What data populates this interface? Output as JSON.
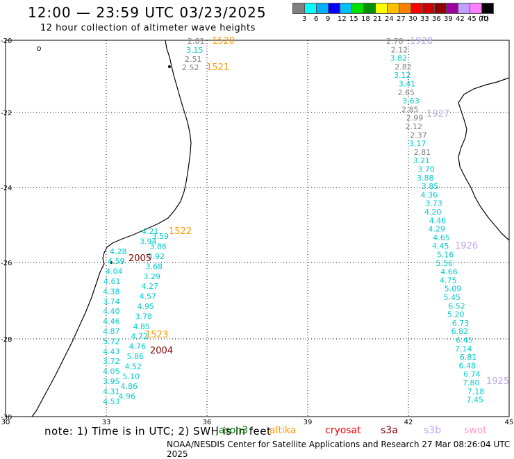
{
  "header": {
    "title": "12:00 — 23:59 UTC 03/23/2025",
    "subtitle": "12 hour collection of altimeter wave heights"
  },
  "legend": {
    "colors": [
      "#808080",
      "#00ffff",
      "#00b0ff",
      "#0000ff",
      "#00c0ff",
      "#00e000",
      "#009000",
      "#ffff00",
      "#ffc000",
      "#ff8000",
      "#ff0000",
      "#d00000",
      "#900000",
      "#a000a0",
      "#c0a0ff",
      "#ff80ff",
      "#000000"
    ],
    "labels": [
      "3",
      "6",
      "9",
      "12",
      "15",
      "18",
      "21",
      "24",
      "27",
      "30",
      "33",
      "36",
      "39",
      "42",
      "45",
      "70",
      "(ft)"
    ]
  },
  "axes": {
    "lon_ticks": [
      "30",
      "33",
      "36",
      "39",
      "42",
      "45"
    ],
    "lat_ticks": [
      "-20",
      "-22",
      "-24",
      "-26",
      "-28",
      "-30"
    ]
  },
  "passes": [
    {
      "label": "1520",
      "color": "#ff9900"
    },
    {
      "label": "1521",
      "color": "#ff9900"
    },
    {
      "label": "1522",
      "color": "#ff9900"
    },
    {
      "label": "1523",
      "color": "#ff9900"
    },
    {
      "label": "2005",
      "color": "#800000"
    },
    {
      "label": "2004",
      "color": "#800000"
    },
    {
      "label": "1928",
      "color": "#b8a8f0"
    },
    {
      "label": "1927",
      "color": "#b8a8f0"
    },
    {
      "label": "1926",
      "color": "#b8a8f0"
    },
    {
      "label": "1925",
      "color": "#b8a8f0"
    }
  ],
  "values": {
    "top_left": [
      {
        "v": "2.81",
        "c": "#808080"
      },
      {
        "v": "3.15",
        "c": "#00cccc"
      },
      {
        "v": "2.51",
        "c": "#808080"
      },
      {
        "v": "2.52",
        "c": "#808080"
      }
    ],
    "left_track": [
      {
        "v": "4.21",
        "c": "#00cccc"
      },
      {
        "v": "3.59",
        "c": "#00cccc"
      },
      {
        "v": "3.94",
        "c": "#00cccc"
      },
      {
        "v": "3.86",
        "c": "#00cccc"
      },
      {
        "v": "4.28",
        "c": "#00cccc"
      },
      {
        "v": "3.92",
        "c": "#00cccc"
      },
      {
        "v": "4.59",
        "c": "#00cccc"
      },
      {
        "v": "3.68",
        "c": "#00cccc"
      },
      {
        "v": "4.04",
        "c": "#00cccc"
      },
      {
        "v": "3.29",
        "c": "#00cccc"
      },
      {
        "v": "4.61",
        "c": "#00cccc"
      },
      {
        "v": "4.27",
        "c": "#00cccc"
      },
      {
        "v": "4.38",
        "c": "#00cccc"
      },
      {
        "v": "4.57",
        "c": "#00cccc"
      },
      {
        "v": "3.74",
        "c": "#00cccc"
      },
      {
        "v": "4.95",
        "c": "#00cccc"
      },
      {
        "v": "4.40",
        "c": "#00cccc"
      },
      {
        "v": "3.78",
        "c": "#00cccc"
      },
      {
        "v": "4.46",
        "c": "#00cccc"
      },
      {
        "v": "4.85",
        "c": "#00cccc"
      },
      {
        "v": "4.87",
        "c": "#00cccc"
      },
      {
        "v": "4.72",
        "c": "#00cccc"
      },
      {
        "v": "5.72",
        "c": "#00cccc"
      },
      {
        "v": "4.76",
        "c": "#00cccc"
      },
      {
        "v": "4.43",
        "c": "#00cccc"
      },
      {
        "v": "5.86",
        "c": "#00cccc"
      },
      {
        "v": "3.72",
        "c": "#00cccc"
      },
      {
        "v": "4.52",
        "c": "#00cccc"
      },
      {
        "v": "4.05",
        "c": "#00cccc"
      },
      {
        "v": "5.10",
        "c": "#00cccc"
      },
      {
        "v": "3.95",
        "c": "#00cccc"
      },
      {
        "v": "4.86",
        "c": "#00cccc"
      },
      {
        "v": "4.31",
        "c": "#00cccc"
      },
      {
        "v": "4.96",
        "c": "#00cccc"
      },
      {
        "v": "4.53",
        "c": "#00cccc"
      }
    ],
    "right_track": [
      {
        "v": "2.78",
        "c": "#808080"
      },
      {
        "v": "2.12",
        "c": "#808080"
      },
      {
        "v": "3.82",
        "c": "#00cccc"
      },
      {
        "v": "2.82",
        "c": "#808080"
      },
      {
        "v": "3.12",
        "c": "#00cccc"
      },
      {
        "v": "3.41",
        "c": "#00cccc"
      },
      {
        "v": "2.65",
        "c": "#808080"
      },
      {
        "v": "3.63",
        "c": "#00cccc"
      },
      {
        "v": "2.85",
        "c": "#808080"
      },
      {
        "v": "2.99",
        "c": "#808080"
      },
      {
        "v": "2.12",
        "c": "#808080"
      },
      {
        "v": "2.37",
        "c": "#808080"
      },
      {
        "v": "3.17",
        "c": "#00cccc"
      },
      {
        "v": "2.81",
        "c": "#808080"
      },
      {
        "v": "3.21",
        "c": "#00cccc"
      },
      {
        "v": "3.70",
        "c": "#00cccc"
      },
      {
        "v": "3.88",
        "c": "#00cccc"
      },
      {
        "v": "3.85",
        "c": "#00cccc"
      },
      {
        "v": "4.36",
        "c": "#00cccc"
      },
      {
        "v": "3.73",
        "c": "#00cccc"
      },
      {
        "v": "4.20",
        "c": "#00cccc"
      },
      {
        "v": "4.46",
        "c": "#00cccc"
      },
      {
        "v": "4.29",
        "c": "#00cccc"
      },
      {
        "v": "4.65",
        "c": "#00cccc"
      },
      {
        "v": "4.45",
        "c": "#00cccc"
      },
      {
        "v": "5.16",
        "c": "#00cccc"
      },
      {
        "v": "5.56",
        "c": "#00cccc"
      },
      {
        "v": "4.66",
        "c": "#00cccc"
      },
      {
        "v": "4.75",
        "c": "#00cccc"
      },
      {
        "v": "5.09",
        "c": "#00cccc"
      },
      {
        "v": "5.45",
        "c": "#00cccc"
      },
      {
        "v": "6.52",
        "c": "#00cccc"
      },
      {
        "v": "5.20",
        "c": "#00cccc"
      },
      {
        "v": "6.73",
        "c": "#00cccc"
      },
      {
        "v": "6.82",
        "c": "#00cccc"
      },
      {
        "v": "6.45",
        "c": "#00cccc"
      },
      {
        "v": "7.14",
        "c": "#00cccc"
      },
      {
        "v": "6.81",
        "c": "#00cccc"
      },
      {
        "v": "6.48",
        "c": "#00cccc"
      },
      {
        "v": "6.74",
        "c": "#00cccc"
      },
      {
        "v": "7.80",
        "c": "#00cccc"
      },
      {
        "v": "7.18",
        "c": "#00cccc"
      },
      {
        "v": "7.45",
        "c": "#00cccc"
      }
    ]
  },
  "footer": {
    "note": "note: 1) Time is in UTC; 2) SWH is in feet",
    "satellites": [
      {
        "name": "jason3",
        "color": "#008000"
      },
      {
        "name": "altika",
        "color": "#ff9900"
      },
      {
        "name": "cryosat",
        "color": "#ff0000"
      },
      {
        "name": "s3a",
        "color": "#800000"
      },
      {
        "name": "s3b",
        "color": "#b8a8f0"
      },
      {
        "name": "swot",
        "color": "#ff99cc"
      }
    ],
    "credit": "NOAA/NESDIS Center for Satellite Applications and Research   27 Mar 08:26:04 UTC 2025"
  }
}
